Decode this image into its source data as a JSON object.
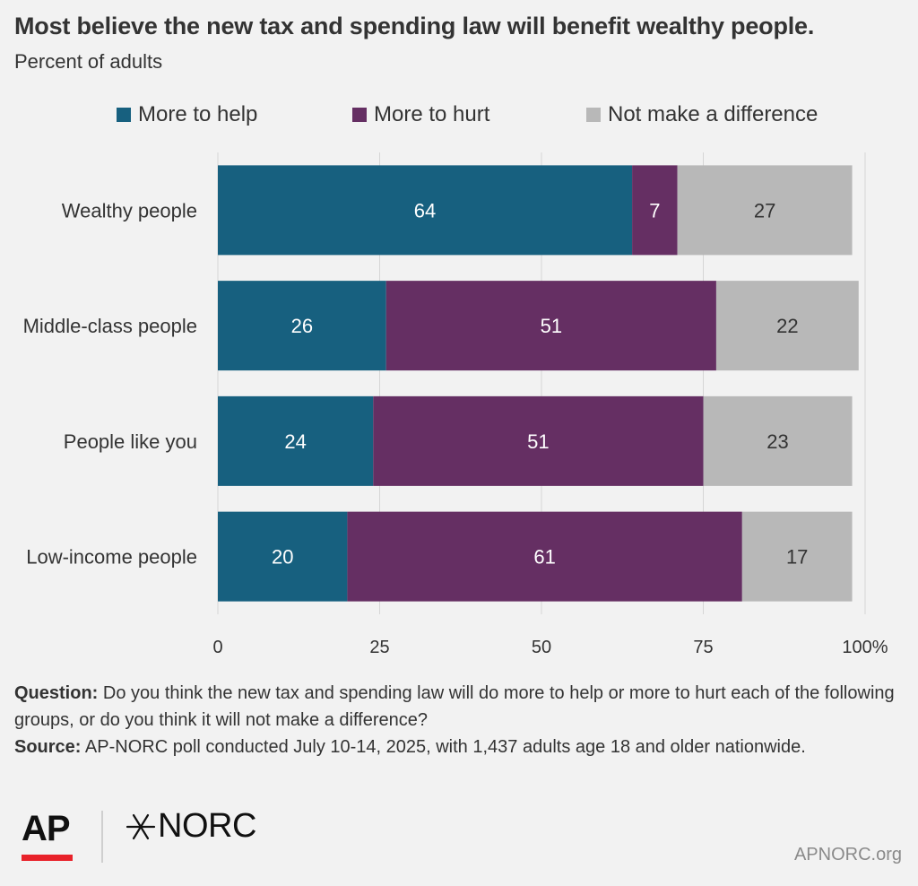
{
  "header": {
    "title": "Most believe the new tax and spending law will benefit wealthy people.",
    "subtitle": "Percent of adults"
  },
  "colors": {
    "help": "#17607f",
    "hurt": "#652f63",
    "no_difference": "#b8b8b8",
    "background": "#f2f2f2",
    "ap_red": "#e8222a"
  },
  "chart_data": {
    "type": "bar",
    "orientation": "horizontal",
    "stacked": true,
    "categories": [
      "Wealthy people",
      "Middle-class people",
      "People like you",
      "Low-income people"
    ],
    "series": [
      {
        "name": "More to help",
        "values": [
          64,
          26,
          24,
          20
        ]
      },
      {
        "name": "More to hurt",
        "values": [
          7,
          51,
          51,
          61
        ]
      },
      {
        "name": "Not make a difference",
        "values": [
          27,
          22,
          23,
          17
        ]
      }
    ],
    "xlim": [
      0,
      100
    ],
    "xticks": [
      "0",
      "25",
      "50",
      "75",
      "100%"
    ],
    "grid": true,
    "legend_position": "top"
  },
  "notes": {
    "question_label": "Question:",
    "question_text": "Do you think the new tax and spending law will do more to help or more to hurt each of the following groups, or do you think it will not make a difference?",
    "source_label": "Source:",
    "source_text": "AP-NORC poll conducted July 10-14, 2025, with 1,437 adults age 18 and older nationwide."
  },
  "footer": {
    "ap_logo": "AP",
    "norc_logo": "NORC",
    "site": "APNORC.org"
  }
}
